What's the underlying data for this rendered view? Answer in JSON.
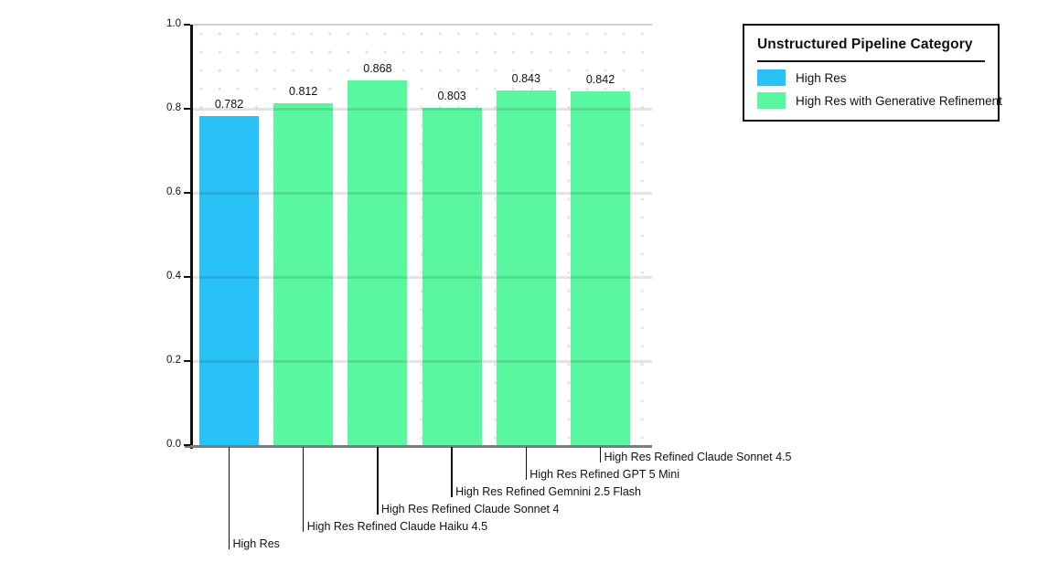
{
  "chart_data": {
    "type": "bar",
    "title": "",
    "xlabel": "",
    "ylabel": "",
    "ylim": [
      0,
      1.0
    ],
    "y_ticks": [
      "1.0",
      "0.8",
      "0.6",
      "0.4",
      "0.2",
      "0.0"
    ],
    "grid": "horizontal-lines-and-dot-grid",
    "legend_position": "top-right",
    "categories": [
      "High Res",
      "High Res Refined Claude Haiku 4.5",
      "High Res Refined Claude Sonnet 4",
      "High Res Refined Gemnini 2.5 Flash",
      "High Res Refined GPT 5 Mini",
      "High Res Refined Claude Sonnet 4.5"
    ],
    "values": [
      0.782,
      0.812,
      0.868,
      0.803,
      0.843,
      0.842
    ],
    "value_labels": [
      "0.782",
      "0.812",
      "0.868",
      "0.803",
      "0.843",
      "0.842"
    ],
    "bar_colors": [
      "#29C2F6",
      "#58F7A0",
      "#58F7A0",
      "#58F7A0",
      "#58F7A0",
      "#58F7A0"
    ],
    "series": [
      {
        "name": "High Res",
        "color": "#29C2F6",
        "values": [
          0.782
        ]
      },
      {
        "name": "High Res with Generative Refinement",
        "color": "#58F7A0",
        "values": [
          0.812,
          0.868,
          0.803,
          0.843,
          0.842
        ]
      }
    ]
  },
  "legend": {
    "title": "Unstructured Pipeline Category",
    "items": [
      {
        "label": "High Res",
        "color": "#29C2F6"
      },
      {
        "label": "High Res with Generative Refinement",
        "color": "#58F7A0"
      }
    ]
  },
  "colors": {
    "bar_blue": "#29C2F6",
    "bar_green": "#58F7A0",
    "axis_y": "#111111",
    "axis_x": "#7d7d7d",
    "gridline": "rgba(40,40,40,0.13)",
    "dot_grid": "#e2e2e2",
    "background": "#ffffff"
  }
}
